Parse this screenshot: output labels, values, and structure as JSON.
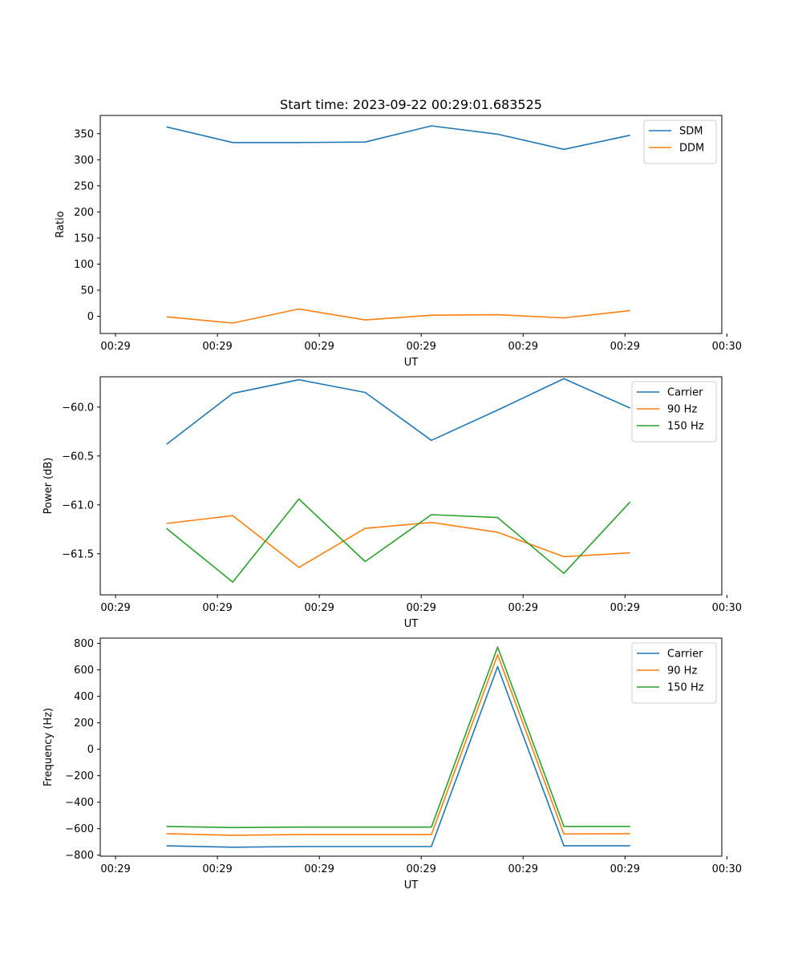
{
  "figure_title": "Start time: 2023-09-22 00:29:01.683525",
  "chart_data": [
    {
      "type": "line",
      "title": "Start time: 2023-09-22 00:29:01.683525",
      "xlabel": "UT",
      "ylabel": "Ratio",
      "x": [
        0.5,
        1.15,
        1.8,
        2.45,
        3.1,
        3.75,
        4.4,
        5.05
      ],
      "xlim": [
        -0.15,
        5.95
      ],
      "xticks": [
        0,
        1,
        2,
        3,
        4,
        5,
        6
      ],
      "xtick_labels": [
        "00:29",
        "00:29",
        "00:29",
        "00:29",
        "00:29",
        "00:29",
        "00:30"
      ],
      "ylim": [
        -33,
        385
      ],
      "yticks": [
        0,
        50,
        100,
        150,
        200,
        250,
        300,
        350
      ],
      "ytick_labels": [
        "0",
        "50",
        "100",
        "150",
        "200",
        "250",
        "300",
        "350"
      ],
      "legend": "top-right",
      "series": [
        {
          "name": "SDM",
          "color": "#1f77b4",
          "values": [
            363,
            333,
            333,
            334,
            365,
            349,
            320,
            347
          ]
        },
        {
          "name": "DDM",
          "color": "#ff7f0e",
          "values": [
            -1,
            -13,
            14,
            -7,
            2,
            3,
            -3,
            11
          ]
        }
      ]
    },
    {
      "type": "line",
      "xlabel": "UT",
      "ylabel": "Power (dB)",
      "x": [
        0.5,
        1.15,
        1.8,
        2.45,
        3.1,
        3.75,
        4.4,
        5.05
      ],
      "xlim": [
        -0.15,
        5.95
      ],
      "xticks": [
        0,
        1,
        2,
        3,
        4,
        5,
        6
      ],
      "xtick_labels": [
        "00:29",
        "00:29",
        "00:29",
        "00:29",
        "00:29",
        "00:29",
        "00:30"
      ],
      "ylim": [
        -61.92,
        -59.69
      ],
      "yticks": [
        -61.5,
        -61.0,
        -60.5,
        -60.0
      ],
      "ytick_labels": [
        "−61.5",
        "−61.0",
        "−60.5",
        "−60.0"
      ],
      "legend": "top-right",
      "series": [
        {
          "name": "Carrier",
          "color": "#1f77b4",
          "values": [
            -60.38,
            -59.86,
            -59.72,
            -59.85,
            -60.34,
            -60.03,
            -59.71,
            -60.01
          ]
        },
        {
          "name": "90 Hz",
          "color": "#ff7f0e",
          "values": [
            -61.19,
            -61.11,
            -61.64,
            -61.24,
            -61.18,
            -61.28,
            -61.53,
            -61.49
          ]
        },
        {
          "name": "150 Hz",
          "color": "#2ca02c",
          "values": [
            -61.24,
            -61.79,
            -60.94,
            -61.58,
            -61.1,
            -61.13,
            -61.7,
            -60.97
          ]
        }
      ]
    },
    {
      "type": "line",
      "xlabel": "UT",
      "ylabel": "Frequency (Hz)",
      "x": [
        0.5,
        1.15,
        1.8,
        2.45,
        3.1,
        3.75,
        4.4,
        5.05
      ],
      "xlim": [
        -0.15,
        5.95
      ],
      "xticks": [
        0,
        1,
        2,
        3,
        4,
        5,
        6
      ],
      "xtick_labels": [
        "00:29",
        "00:29",
        "00:29",
        "00:29",
        "00:29",
        "00:29",
        "00:30"
      ],
      "ylim": [
        -808,
        840
      ],
      "yticks": [
        -800,
        -600,
        -400,
        -200,
        0,
        200,
        400,
        600,
        800
      ],
      "ytick_labels": [
        "−800",
        "−600",
        "−400",
        "−200",
        "0",
        "200",
        "400",
        "600",
        "800"
      ],
      "legend": "top-right",
      "series": [
        {
          "name": "Carrier",
          "color": "#1f77b4",
          "values": [
            -730,
            -740,
            -735,
            -735,
            -735,
            625,
            -730,
            -730
          ]
        },
        {
          "name": "90 Hz",
          "color": "#ff7f0e",
          "values": [
            -638,
            -650,
            -645,
            -645,
            -645,
            715,
            -640,
            -638
          ]
        },
        {
          "name": "150 Hz",
          "color": "#2ca02c",
          "values": [
            -583,
            -592,
            -588,
            -588,
            -588,
            773,
            -583,
            -583
          ]
        }
      ]
    }
  ]
}
